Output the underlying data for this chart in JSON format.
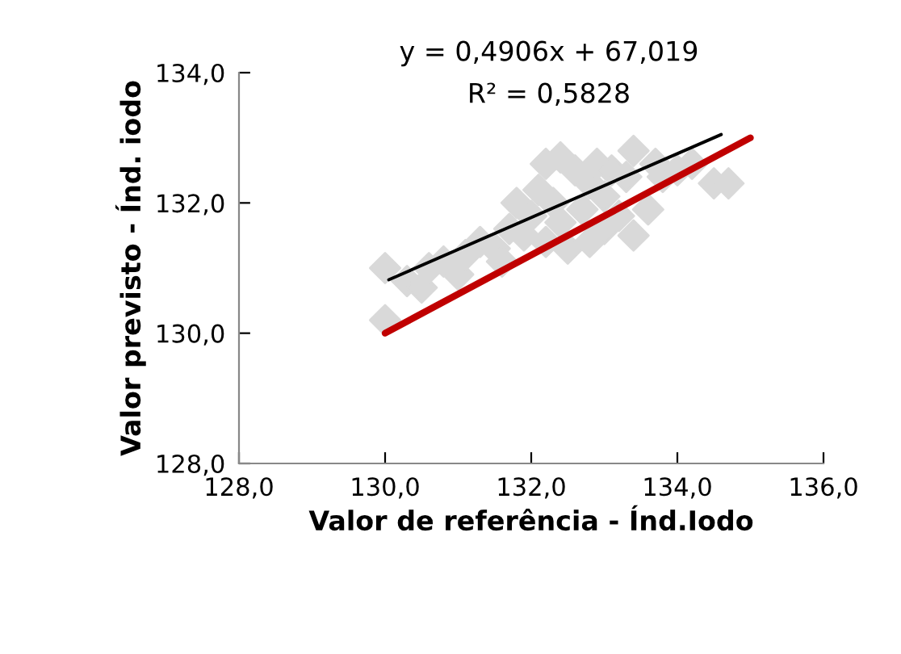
{
  "chart_data": {
    "type": "scatter",
    "xlabel": "Valor de referência - Índ.Iodo",
    "ylabel": "Valor previsto - Índ. iodo",
    "annotations": [
      "y = 0,4906x + 67,019",
      "R² = 0,5828"
    ],
    "grid": false,
    "legend": false,
    "xlim": [
      128,
      136
    ],
    "ylim": [
      128,
      134
    ],
    "xticks": [
      {
        "value": 128,
        "label": "128,0"
      },
      {
        "value": 130,
        "label": "130,0"
      },
      {
        "value": 132,
        "label": "132,0"
      },
      {
        "value": 134,
        "label": "134,0"
      },
      {
        "value": 136,
        "label": "136,0"
      }
    ],
    "yticks": [
      {
        "value": 128,
        "label": "128,0"
      },
      {
        "value": 130,
        "label": "130,0"
      },
      {
        "value": 132,
        "label": "132,0"
      },
      {
        "value": 134,
        "label": "134,0"
      }
    ],
    "series": [
      {
        "marker": "diamond",
        "color": "#d9d9d9",
        "x": [
          130.0,
          130.0,
          130.3,
          130.5,
          130.6,
          130.8,
          131.0,
          131.1,
          131.3,
          131.5,
          131.6,
          131.7,
          131.8,
          131.9,
          132.0,
          132.1,
          132.2,
          132.2,
          132.3,
          132.4,
          132.4,
          132.5,
          132.6,
          132.7,
          132.8,
          132.8,
          132.9,
          133.0,
          133.0,
          133.1,
          133.2,
          133.3,
          133.4,
          133.4,
          133.7,
          133.8,
          134.0,
          134.2,
          134.5,
          134.7,
          133.6
        ],
        "values": [
          131.0,
          130.2,
          130.8,
          130.7,
          131.0,
          131.1,
          130.9,
          131.2,
          131.4,
          131.3,
          131.1,
          131.6,
          132.0,
          131.5,
          131.8,
          132.2,
          132.6,
          131.4,
          132.0,
          132.7,
          131.7,
          131.3,
          132.5,
          131.9,
          132.3,
          131.4,
          132.6,
          131.6,
          132.1,
          132.5,
          131.8,
          132.4,
          132.8,
          131.5,
          132.6,
          132.4,
          132.5,
          132.6,
          132.3,
          132.3,
          131.9
        ]
      },
      {
        "type": "line",
        "color": "#000000",
        "x": [
          130.05,
          134.6
        ],
        "values": [
          130.82,
          133.05
        ]
      },
      {
        "type": "line",
        "color": "#c00000",
        "x": [
          130,
          135
        ],
        "values": [
          130,
          133
        ]
      }
    ]
  }
}
